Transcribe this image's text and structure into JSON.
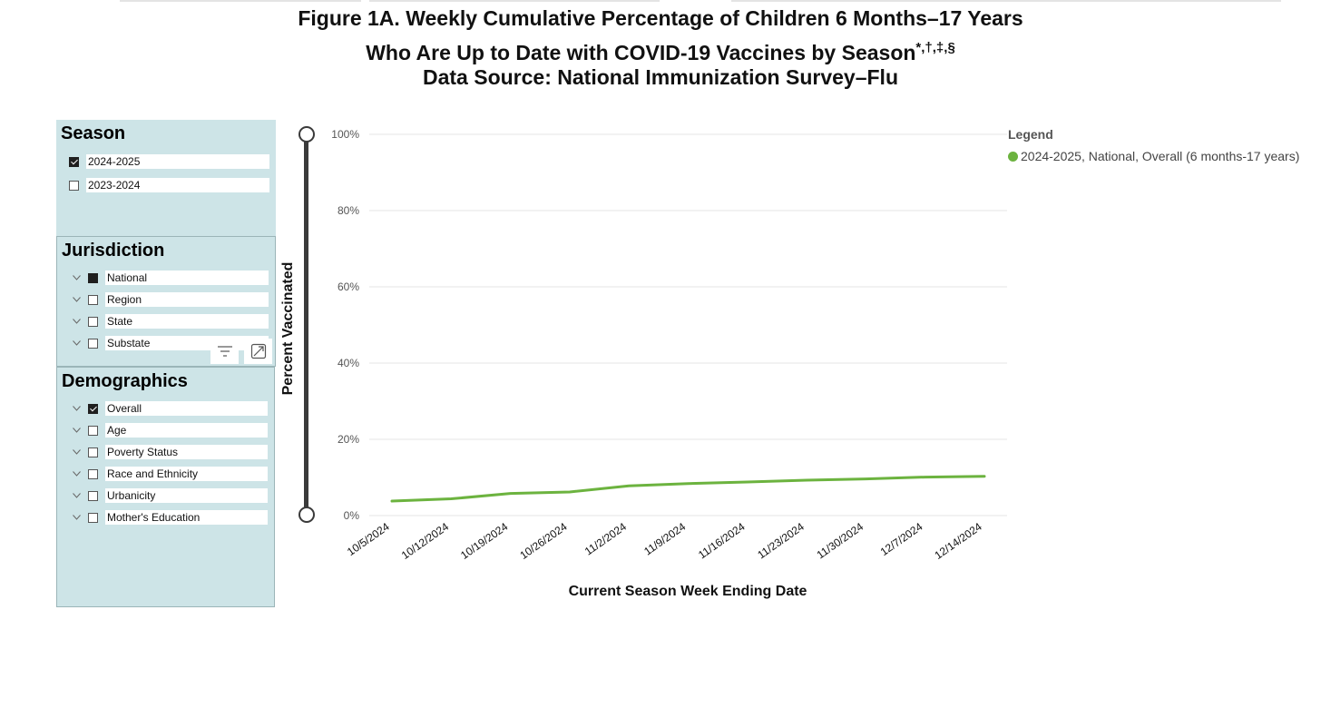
{
  "title": {
    "line1": "Figure 1A. Weekly Cumulative Percentage of Children 6 Months–17 Years",
    "line2": "Who Are Up to Date with COVID-19 Vaccines by Season",
    "line2_marks": "*,†,‡,§",
    "line3": "Data Source: National Immunization Survey–Flu"
  },
  "season_filter": {
    "title": "Season",
    "options": [
      {
        "label": "2024-2025",
        "checked": true
      },
      {
        "label": "2023-2024",
        "checked": false
      }
    ]
  },
  "jurisdiction_filter": {
    "title": "Jurisdiction",
    "options": [
      {
        "label": "National",
        "state": "filled"
      },
      {
        "label": "Region",
        "state": "unchecked"
      },
      {
        "label": "State",
        "state": "unchecked"
      },
      {
        "label": "Substate",
        "state": "unchecked"
      }
    ],
    "toolbar": {
      "filter_icon": "filter-icon",
      "focus_icon": "focus-mode-icon"
    }
  },
  "demographics_filter": {
    "title": "Demographics",
    "options": [
      {
        "label": "Overall",
        "checked": true
      },
      {
        "label": "Age",
        "checked": false
      },
      {
        "label": "Poverty Status",
        "checked": false
      },
      {
        "label": "Race and Ethnicity",
        "checked": false
      },
      {
        "label": "Urbanicity",
        "checked": false
      },
      {
        "label": "Mother's Education",
        "checked": false
      }
    ]
  },
  "legend": {
    "title": "Legend",
    "items": [
      {
        "label": "2024-2025, National, Overall (6 months-17 years)",
        "color": "#6cb33f"
      }
    ]
  },
  "chart_data": {
    "type": "line",
    "xlabel": "Current Season Week Ending Date",
    "ylabel": "Percent Vaccinated",
    "ylim": [
      0,
      100
    ],
    "yticks": [
      "0%",
      "20%",
      "40%",
      "60%",
      "80%",
      "100%"
    ],
    "categories": [
      "10/5/2024",
      "10/12/2024",
      "10/19/2024",
      "10/26/2024",
      "11/2/2024",
      "11/9/2024",
      "11/16/2024",
      "11/23/2024",
      "11/30/2024",
      "12/7/2024",
      "12/14/2024"
    ],
    "series": [
      {
        "name": "2024-2025, National, Overall (6 months-17 years)",
        "color": "#6cb33f",
        "values": [
          3.8,
          4.4,
          5.8,
          6.2,
          7.8,
          8.4,
          8.8,
          9.3,
          9.6,
          10.1,
          10.3
        ]
      }
    ],
    "grid": true,
    "legend_position": "top-right"
  }
}
